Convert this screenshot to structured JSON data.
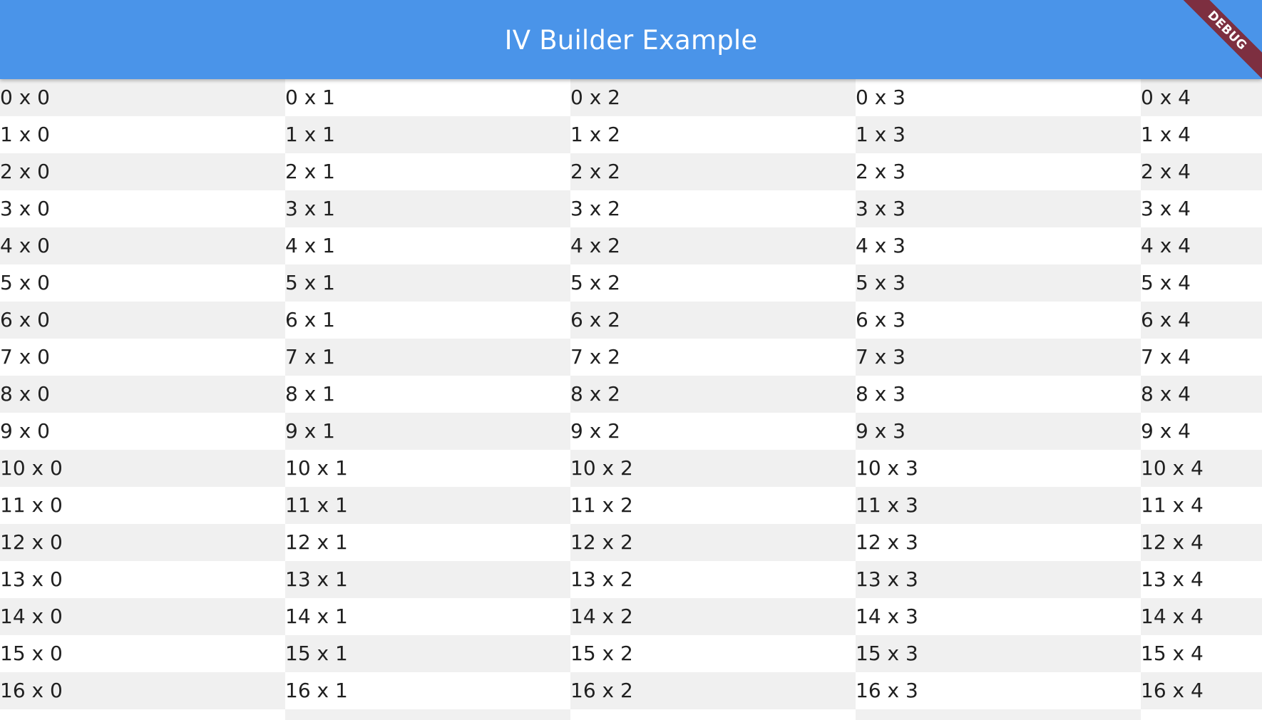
{
  "app_bar": {
    "title": "IV Builder Example",
    "background_color": "#4a94e9"
  },
  "debug_banner": {
    "label": "DEBUG",
    "color": "#7d2f40"
  },
  "grid": {
    "shade_color": "#f0f0f0",
    "rows": [
      [
        "0 x 0",
        "0 x 1",
        "0 x 2",
        "0 x 3",
        "0 x 4"
      ],
      [
        "1 x 0",
        "1 x 1",
        "1 x 2",
        "1 x 3",
        "1 x 4"
      ],
      [
        "2 x 0",
        "2 x 1",
        "2 x 2",
        "2 x 3",
        "2 x 4"
      ],
      [
        "3 x 0",
        "3 x 1",
        "3 x 2",
        "3 x 3",
        "3 x 4"
      ],
      [
        "4 x 0",
        "4 x 1",
        "4 x 2",
        "4 x 3",
        "4 x 4"
      ],
      [
        "5 x 0",
        "5 x 1",
        "5 x 2",
        "5 x 3",
        "5 x 4"
      ],
      [
        "6 x 0",
        "6 x 1",
        "6 x 2",
        "6 x 3",
        "6 x 4"
      ],
      [
        "7 x 0",
        "7 x 1",
        "7 x 2",
        "7 x 3",
        "7 x 4"
      ],
      [
        "8 x 0",
        "8 x 1",
        "8 x 2",
        "8 x 3",
        "8 x 4"
      ],
      [
        "9 x 0",
        "9 x 1",
        "9 x 2",
        "9 x 3",
        "9 x 4"
      ],
      [
        "10 x 0",
        "10 x 1",
        "10 x 2",
        "10 x 3",
        "10 x 4"
      ],
      [
        "11 x 0",
        "11 x 1",
        "11 x 2",
        "11 x 3",
        "11 x 4"
      ],
      [
        "12 x 0",
        "12 x 1",
        "12 x 2",
        "12 x 3",
        "12 x 4"
      ],
      [
        "13 x 0",
        "13 x 1",
        "13 x 2",
        "13 x 3",
        "13 x 4"
      ],
      [
        "14 x 0",
        "14 x 1",
        "14 x 2",
        "14 x 3",
        "14 x 4"
      ],
      [
        "15 x 0",
        "15 x 1",
        "15 x 2",
        "15 x 3",
        "15 x 4"
      ],
      [
        "16 x 0",
        "16 x 1",
        "16 x 2",
        "16 x 3",
        "16 x 4"
      ],
      [
        "",
        "",
        "",
        "",
        ""
      ]
    ]
  }
}
